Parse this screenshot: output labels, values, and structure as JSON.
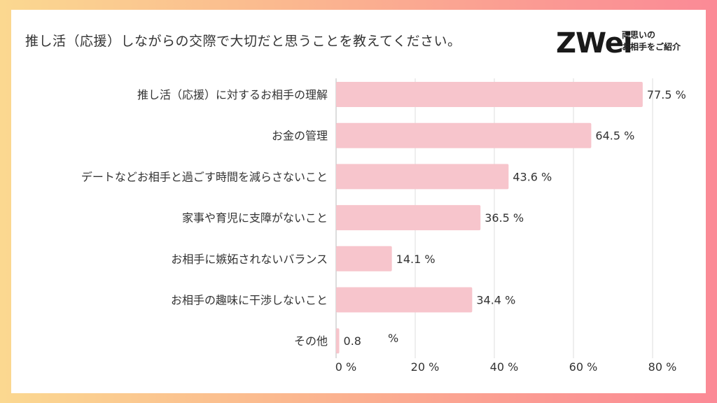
{
  "title": "推し活（応援）しながらの交際で大切だと思うことを教えてください。",
  "logo": {
    "mark": "ZWei",
    "sub_line1": "両思いの",
    "sub_line2": "お相手をご紹介"
  },
  "colors": {
    "bar": "#f7c5cc",
    "grid": "#dddddd",
    "text": "#333333"
  },
  "chart_data": {
    "type": "bar",
    "orientation": "horizontal",
    "categories": [
      "推し活（応援）に対するお相手の理解",
      "お金の管理",
      "デートなどお相手と過ごす時間を減らさないこと",
      "家事や育児に支障がないこと",
      "お相手に嫉妬されないバランス",
      "お相手の趣味に干渉しないこと",
      "その他"
    ],
    "values": [
      77.5,
      64.5,
      43.6,
      36.5,
      14.1,
      34.4,
      0.8
    ],
    "value_labels": [
      "77.5 %",
      "64.5 %",
      "43.6 %",
      "36.5 %",
      "14.1 %",
      "34.4 %",
      "0.8"
    ],
    "extra_unit_label": "%",
    "xlim": [
      0,
      80
    ],
    "xticks": [
      "0 %",
      "20 %",
      "40 %",
      "60 %",
      "80 %"
    ],
    "grid": true
  }
}
